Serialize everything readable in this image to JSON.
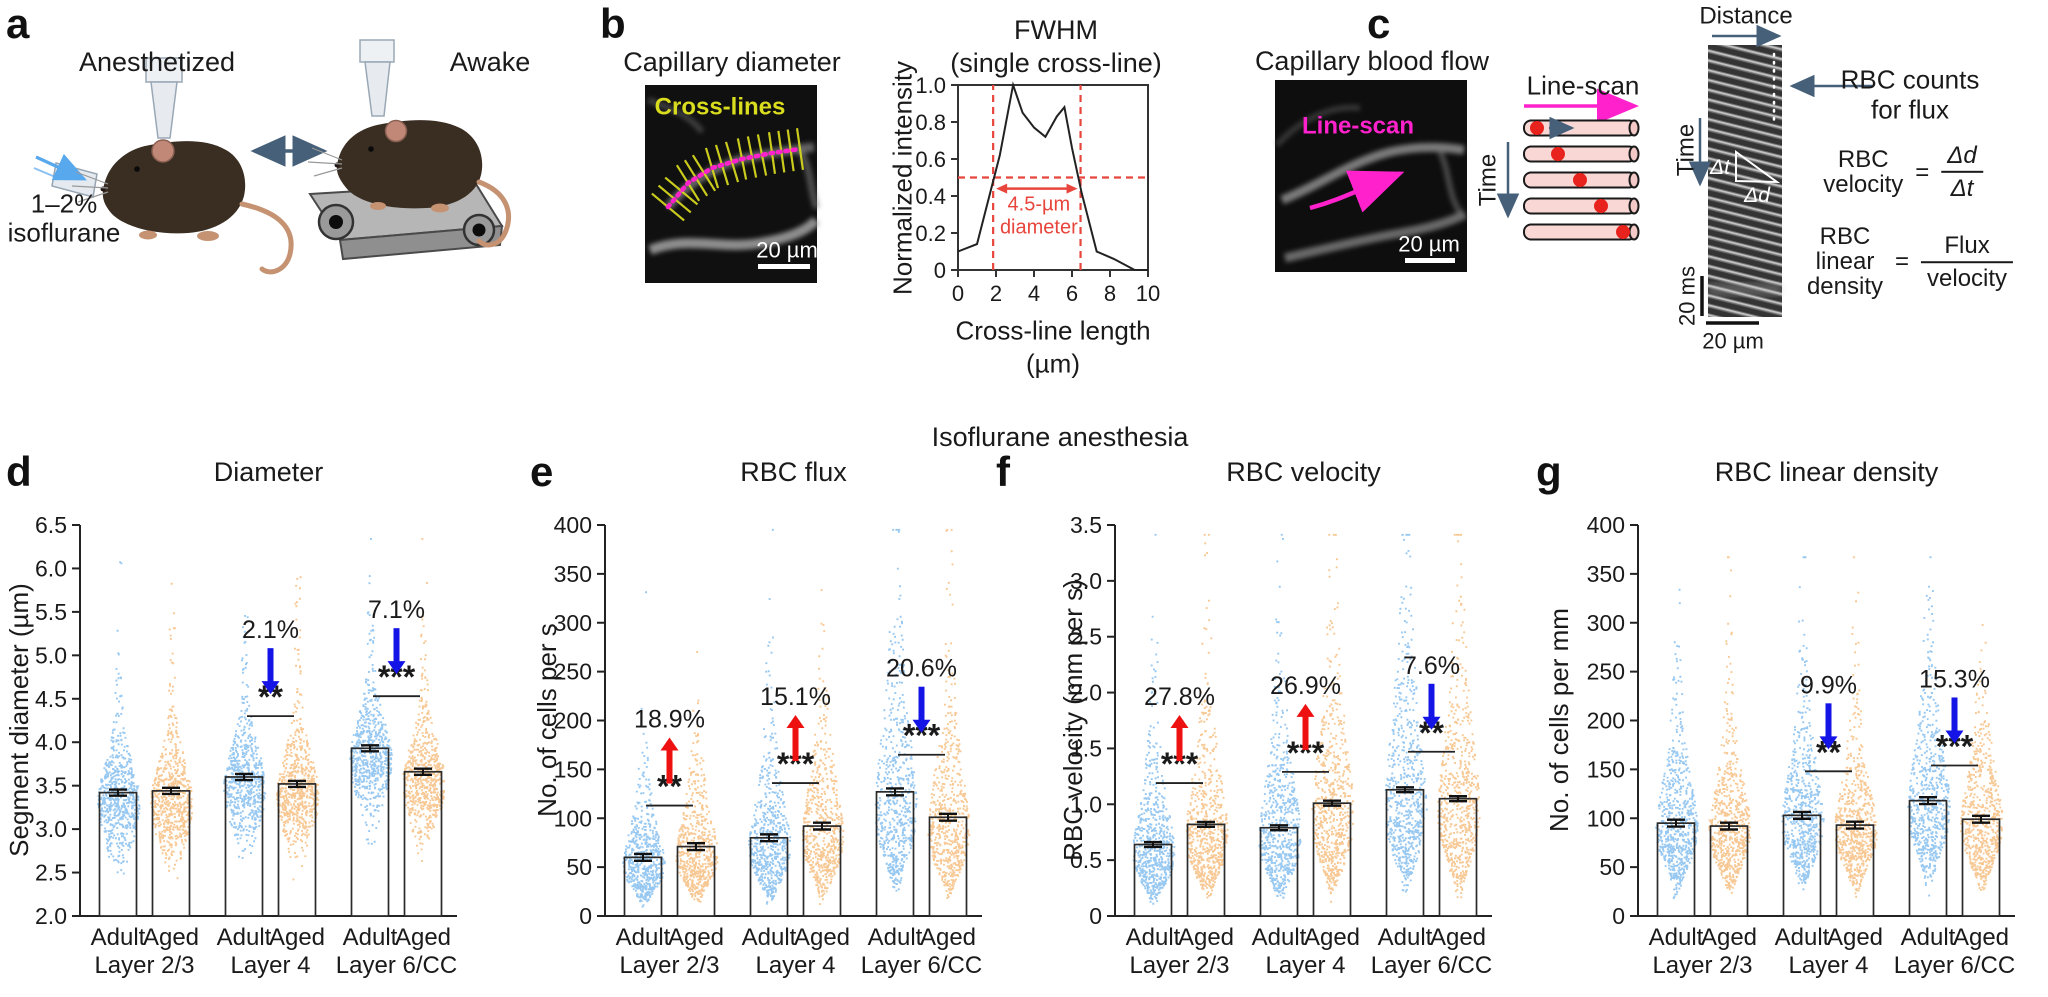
{
  "figure": {
    "section_title": "Isoflurane anesthesia",
    "panels": {
      "a": {
        "label": "a",
        "left_condition": "Anesthetized",
        "right_condition": "Awake",
        "anesthetic_line1": "1–2%",
        "anesthetic_line2": "isoflurane"
      },
      "b": {
        "label": "b",
        "image_title": "Capillary diameter",
        "image_annotation": "Cross-lines",
        "scale_bar": "20 µm"
      },
      "c": {
        "label": "c",
        "image_title": "Capillary blood flow",
        "image_annotation": "Line-scan",
        "scale_bar": "20 µm",
        "linescan": {
          "title": "Line-scan",
          "time_label": "Time"
        },
        "kymograph": {
          "distance_label": "Distance",
          "time_label": "Time",
          "delta_t": "Δt",
          "delta_d": "Δd",
          "time_scale": "20 ms",
          "distance_scale": "20 µm"
        },
        "notes": {
          "counts_line1": "RBC counts",
          "counts_line2": "for flux",
          "velocity_eq": {
            "lhs1": "RBC",
            "lhs2": "velocity",
            "equals": "=",
            "numerator": "Δd",
            "denominator": "Δt"
          },
          "density_eq": {
            "lhs1": "RBC linear",
            "lhs2": "density",
            "equals": "=",
            "numerator": "Flux",
            "denominator": "velocity"
          }
        }
      },
      "d": {
        "label": "d"
      },
      "e": {
        "label": "e"
      },
      "f": {
        "label": "f"
      },
      "g": {
        "label": "g"
      }
    },
    "colors": {
      "adult": "#8CC2EF",
      "aged": "#F6C287",
      "increase_arrow": "#EE1111",
      "decrease_arrow": "#1414E6",
      "dash_red": "#E8453C",
      "magenta": "#FF22CC",
      "yellow": "#DADC1E"
    }
  },
  "chart_data": [
    {
      "id": "fwhm",
      "panel": "b",
      "type": "line",
      "title_line1": "FWHM",
      "title_line2": "(single cross-line)",
      "xlabel_line1": "Cross-line length",
      "xlabel_line2": "(µm)",
      "ylabel": "Normalized intensity",
      "xlim": [
        0,
        10
      ],
      "ylim": [
        0,
        1
      ],
      "xticks": [
        0,
        2,
        4,
        6,
        8,
        10
      ],
      "yticks": [
        0,
        0.2,
        0.4,
        0.6,
        0.8,
        1.0
      ],
      "x": [
        0,
        1,
        2.2,
        2.9,
        3.4,
        4.0,
        4.6,
        5.2,
        5.6,
        6.0,
        6.5,
        7.3,
        8.2,
        9.3,
        10
      ],
      "y": [
        0.1,
        0.14,
        0.62,
        1.0,
        0.85,
        0.77,
        0.72,
        0.83,
        0.88,
        0.66,
        0.42,
        0.1,
        0.06,
        0.0,
        0.0
      ],
      "half_max": 0.5,
      "fwhm_x1": 1.85,
      "fwhm_x2": 6.45,
      "fwhm_label_line1": "4.5-µm",
      "fwhm_label_line2": "diameter"
    },
    {
      "id": "diameter",
      "panel": "d",
      "type": "bar-scatter",
      "title": "Diameter",
      "ylabel": "Segment diameter (µm)",
      "ylim": [
        2.0,
        6.5
      ],
      "ytick_step": 0.5,
      "ytick_decimals": 1,
      "group_labels": [
        "Adult",
        "Aged"
      ],
      "layers": [
        "Layer 2/3",
        "Layer 4",
        "Layer 6/CC"
      ],
      "series": [
        {
          "layer": "Layer 2/3",
          "adult": 3.42,
          "aged": 3.44
        },
        {
          "layer": "Layer 4",
          "adult": 3.6,
          "aged": 3.52
        },
        {
          "layer": "Layer 6/CC",
          "adult": 3.93,
          "aged": 3.66
        }
      ],
      "error_bar": 0.035,
      "annotations": [
        {
          "layer_index": 1,
          "percent": "2.1%",
          "direction": "down",
          "stars": "**",
          "line_y": 4.3
        },
        {
          "layer_index": 2,
          "percent": "7.1%",
          "direction": "down",
          "stars": "***",
          "line_y": 4.53
        }
      ],
      "scatter": {
        "kind": "normal-tail",
        "n": 650,
        "core_sd": 0.3,
        "tail_p": 0.22,
        "tail_scale": 0.55,
        "min": 2.28,
        "max": 6.35,
        "mode_offset": -0.12,
        "width_sd": 0.45
      }
    },
    {
      "id": "rbc-flux",
      "panel": "e",
      "type": "bar-scatter",
      "title": "RBC flux",
      "ylabel": "No. of cells per s",
      "ylim": [
        0,
        400
      ],
      "ytick_step": 50,
      "ytick_decimals": 0,
      "group_labels": [
        "Adult",
        "Aged"
      ],
      "layers": [
        "Layer 2/3",
        "Layer 4",
        "Layer 6/CC"
      ],
      "series": [
        {
          "layer": "Layer 2/3",
          "adult": 60,
          "aged": 71
        },
        {
          "layer": "Layer 4",
          "adult": 80,
          "aged": 92
        },
        {
          "layer": "Layer 6/CC",
          "adult": 127,
          "aged": 101
        }
      ],
      "error_bar": 3.5,
      "annotations": [
        {
          "layer_index": 0,
          "percent": "18.9%",
          "direction": "up",
          "stars": "**",
          "line_y": 113
        },
        {
          "layer_index": 1,
          "percent": "15.1%",
          "direction": "up",
          "stars": "***",
          "line_y": 136
        },
        {
          "layer_index": 2,
          "percent": "20.6%",
          "direction": "down",
          "stars": "***",
          "line_y": 165
        }
      ],
      "scatter": {
        "kind": "lognormal",
        "n": 600,
        "sigma": 0.52,
        "shift": -0.12,
        "min": 2,
        "max": 396
      }
    },
    {
      "id": "rbc-velocity",
      "panel": "f",
      "type": "bar-scatter",
      "title": "RBC velocity",
      "ylabel": "RBC velocity (mm per s)",
      "ylim": [
        0,
        3.5
      ],
      "ytick_step": 0.5,
      "ytick_decimals": 1,
      "group_labels": [
        "Adult",
        "Aged"
      ],
      "layers": [
        "Layer 2/3",
        "Layer 4",
        "Layer 6/CC"
      ],
      "series": [
        {
          "layer": "Layer 2/3",
          "adult": 0.64,
          "aged": 0.82
        },
        {
          "layer": "Layer 4",
          "adult": 0.79,
          "aged": 1.01
        },
        {
          "layer": "Layer 6/CC",
          "adult": 1.13,
          "aged": 1.05
        }
      ],
      "error_bar": 0.022,
      "annotations": [
        {
          "layer_index": 0,
          "percent": "27.8%",
          "direction": "up",
          "stars": "***",
          "line_y": 1.19
        },
        {
          "layer_index": 1,
          "percent": "26.9%",
          "direction": "up",
          "stars": "***",
          "line_y": 1.29
        },
        {
          "layer_index": 2,
          "percent": "7.6%",
          "direction": "down",
          "stars": "**",
          "line_y": 1.47
        }
      ],
      "scatter": {
        "kind": "lognormal",
        "n": 650,
        "sigma": 0.55,
        "shift": -0.1,
        "min": 0.03,
        "max": 3.42
      }
    },
    {
      "id": "rbc-linear-density",
      "panel": "g",
      "type": "bar-scatter",
      "title": "RBC linear density",
      "ylabel": "No. of cells per mm",
      "ylim": [
        0,
        400
      ],
      "ytick_step": 50,
      "ytick_decimals": 0,
      "group_labels": [
        "Adult",
        "Aged"
      ],
      "layers": [
        "Layer 2/3",
        "Layer 4",
        "Layer 6/CC"
      ],
      "series": [
        {
          "layer": "Layer 2/3",
          "adult": 95,
          "aged": 92
        },
        {
          "layer": "Layer 4",
          "adult": 103,
          "aged": 93
        },
        {
          "layer": "Layer 6/CC",
          "adult": 118,
          "aged": 99
        }
      ],
      "error_bar": 3.5,
      "annotations": [
        {
          "layer_index": 1,
          "percent": "9.9%",
          "direction": "down",
          "stars": "**",
          "line_y": 148
        },
        {
          "layer_index": 2,
          "percent": "15.3%",
          "direction": "down",
          "stars": "***",
          "line_y": 154
        }
      ],
      "scatter": {
        "kind": "lognormal",
        "n": 650,
        "sigma": 0.45,
        "shift": -0.05,
        "min": 8,
        "max": 368
      }
    }
  ]
}
